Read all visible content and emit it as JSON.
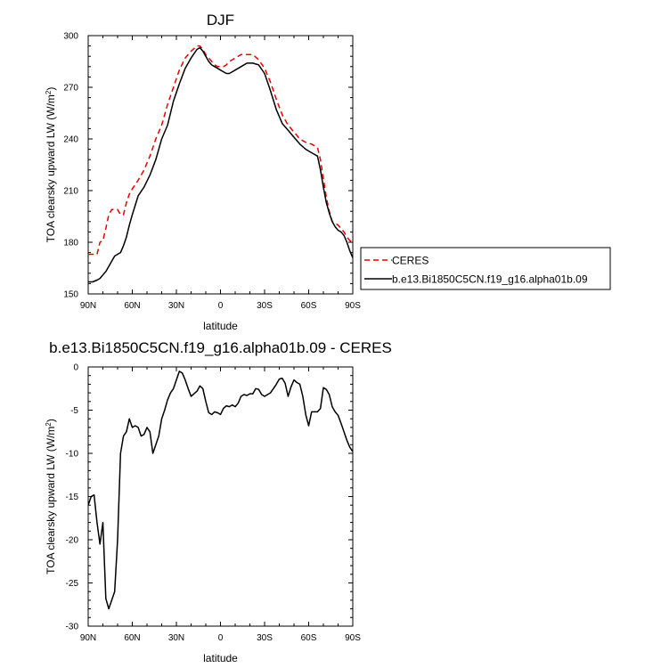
{
  "chart_data": [
    {
      "type": "line",
      "title": "DJF",
      "xlabel": "latitude",
      "ylabel": "TOA clearsky upward LW (W/m",
      "ylabel_sup": "2",
      "ylabel_end": ")",
      "xlim": [
        90,
        -90
      ],
      "ylim": [
        150,
        300
      ],
      "x_ticks": [
        90,
        60,
        30,
        0,
        -30,
        -60,
        -90
      ],
      "x_ticklabels": [
        "90N",
        "60N",
        "30N",
        "0",
        "30S",
        "60S",
        "90S"
      ],
      "y_ticks": [
        150,
        180,
        210,
        240,
        270,
        300
      ],
      "y_ticklabels": [
        "150",
        "180",
        "210",
        "240",
        "270",
        "300"
      ],
      "legend_position": "outside-right",
      "series": [
        {
          "name": "CERES",
          "color": "#e60000",
          "dash": "dashed",
          "x": [
            90,
            87,
            84,
            82,
            80,
            78,
            76,
            74,
            72,
            70,
            68,
            66,
            64,
            62,
            60,
            56,
            52,
            48,
            44,
            40,
            36,
            32,
            28,
            24,
            20,
            16,
            14,
            12,
            10,
            8,
            6,
            4,
            2,
            0,
            -2,
            -4,
            -6,
            -8,
            -10,
            -14,
            -18,
            -22,
            -26,
            -30,
            -34,
            -38,
            -42,
            -46,
            -50,
            -54,
            -58,
            -62,
            -66,
            -68,
            -70,
            -72,
            -74,
            -76,
            -78,
            -80,
            -82,
            -84,
            -86,
            -88,
            -90
          ],
          "y": [
            173,
            173,
            173,
            180,
            181,
            188,
            196,
            199,
            199,
            199,
            196,
            196,
            203,
            208,
            211,
            216,
            222,
            230,
            240,
            248,
            260,
            270,
            280,
            287,
            291,
            294,
            294,
            292,
            289,
            287,
            285,
            283,
            282,
            282,
            282,
            283,
            285,
            286,
            287,
            289,
            289,
            289,
            286,
            281,
            273,
            263,
            254,
            248,
            244,
            240,
            238,
            237,
            235,
            228,
            217,
            206,
            198,
            192,
            191,
            190,
            188,
            186,
            183,
            181,
            180
          ]
        },
        {
          "name": "b.e13.Bi1850C5CN.f19_g16.alpha01b.09",
          "color": "#000000",
          "dash": "solid",
          "x": [
            90,
            87,
            84,
            82,
            80,
            78,
            76,
            74,
            72,
            70,
            68,
            66,
            64,
            62,
            60,
            56,
            52,
            48,
            44,
            40,
            36,
            32,
            28,
            24,
            20,
            16,
            14,
            12,
            10,
            8,
            6,
            4,
            2,
            0,
            -2,
            -4,
            -6,
            -8,
            -10,
            -14,
            -18,
            -22,
            -26,
            -30,
            -34,
            -38,
            -42,
            -46,
            -50,
            -54,
            -58,
            -62,
            -66,
            -68,
            -70,
            -72,
            -74,
            -76,
            -78,
            -80,
            -82,
            -84,
            -86,
            -88,
            -90
          ],
          "y": [
            157,
            157,
            158,
            159,
            161,
            163,
            166,
            169,
            172,
            173,
            174,
            178,
            183,
            190,
            196,
            207,
            212,
            219,
            228,
            240,
            248,
            262,
            272,
            281,
            287,
            292,
            293,
            291,
            288,
            285,
            283,
            282,
            281,
            280,
            279,
            278,
            278,
            279,
            280,
            282,
            284,
            284,
            283,
            278,
            268,
            257,
            249,
            245,
            241,
            237,
            234,
            232,
            230,
            222,
            212,
            203,
            197,
            192,
            189,
            187,
            186,
            184,
            180,
            175,
            171
          ]
        }
      ]
    },
    {
      "type": "line",
      "title": "b.e13.Bi1850C5CN.f19_g16.alpha01b.09 - CERES",
      "xlabel": "latitude",
      "ylabel": "TOA clearsky upward LW (W/m",
      "ylabel_sup": "2",
      "ylabel_end": ")",
      "xlim": [
        90,
        -90
      ],
      "ylim": [
        -30,
        0
      ],
      "x_ticks": [
        90,
        60,
        30,
        0,
        -30,
        -60,
        -90
      ],
      "x_ticklabels": [
        "90N",
        "60N",
        "30N",
        "0",
        "30S",
        "60S",
        "90S"
      ],
      "y_ticks": [
        -30,
        -25,
        -20,
        -15,
        -10,
        -5,
        0
      ],
      "y_ticklabels": [
        "-30",
        "-25",
        "-20",
        "-15",
        "-10",
        "-5",
        "0"
      ],
      "series": [
        {
          "name": "",
          "color": "#000000",
          "dash": "solid",
          "x": [
            90,
            88,
            86,
            84,
            82,
            80,
            78,
            76,
            74,
            72,
            70,
            68,
            66,
            64,
            62,
            60,
            58,
            56,
            54,
            52,
            50,
            48,
            46,
            44,
            42,
            40,
            38,
            36,
            34,
            32,
            30,
            28,
            26,
            24,
            22,
            20,
            18,
            16,
            14,
            12,
            10,
            8,
            6,
            4,
            2,
            0,
            -2,
            -4,
            -6,
            -8,
            -10,
            -12,
            -14,
            -16,
            -18,
            -20,
            -22,
            -24,
            -26,
            -28,
            -30,
            -32,
            -34,
            -36,
            -38,
            -40,
            -42,
            -44,
            -46,
            -48,
            -50,
            -52,
            -54,
            -56,
            -58,
            -60,
            -62,
            -64,
            -66,
            -68,
            -70,
            -72,
            -74,
            -76,
            -78,
            -80,
            -82,
            -84,
            -86,
            -88,
            -90
          ],
          "y": [
            -16,
            -15,
            -14.8,
            -18,
            -20.5,
            -18,
            -26.8,
            -28,
            -27,
            -26,
            -20,
            -10,
            -8,
            -7.5,
            -6,
            -7,
            -6.8,
            -7,
            -8,
            -7.8,
            -7,
            -7.5,
            -10,
            -9,
            -8,
            -6,
            -5,
            -3.8,
            -3,
            -2.5,
            -1.5,
            -0.5,
            -0.7,
            -1.5,
            -2.5,
            -3.4,
            -3.1,
            -2.8,
            -2.2,
            -2.5,
            -4,
            -5.3,
            -5.5,
            -5.2,
            -5.3,
            -5.5,
            -4.8,
            -4.5,
            -4.6,
            -4.4,
            -4.6,
            -4.2,
            -3.4,
            -3.2,
            -3.3,
            -3.1,
            -3.1,
            -2.5,
            -2.6,
            -3.2,
            -3.4,
            -3.2,
            -3,
            -2.5,
            -2,
            -1.4,
            -1.3,
            -1.9,
            -3.4,
            -2.3,
            -1.5,
            -1.8,
            -2,
            -3.4,
            -5.5,
            -6.8,
            -5.2,
            -5.2,
            -5.2,
            -4.8,
            -2.4,
            -2.6,
            -3.2,
            -4.6,
            -5.2,
            -5.6,
            -6.5,
            -7.5,
            -8.5,
            -9.3,
            -9.8
          ]
        }
      ]
    }
  ]
}
